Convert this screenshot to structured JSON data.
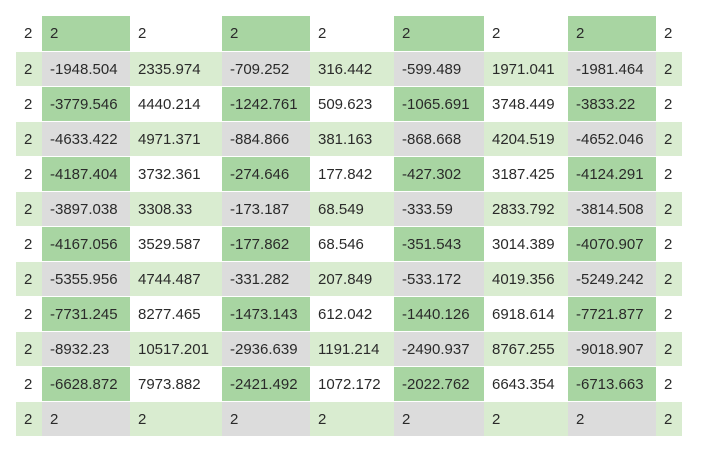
{
  "colors": {
    "white": "#ffffff",
    "light_green": "#d9ecd0",
    "mid_green": "#a8d5a2",
    "gray": "#dcdcdc"
  },
  "grid": {
    "rows": [
      {
        "cells": [
          "2",
          "2",
          "2",
          "2",
          "2",
          "2",
          "2",
          "2",
          "2"
        ],
        "bg": [
          "white",
          "mid_green",
          "white",
          "mid_green",
          "white",
          "mid_green",
          "white",
          "mid_green",
          "white"
        ]
      },
      {
        "cells": [
          "2",
          "-1948.504",
          "2335.974",
          "-709.252",
          "316.442",
          "-599.489",
          "1971.041",
          "-1981.464",
          "2"
        ],
        "bg": [
          "light_green",
          "gray",
          "light_green",
          "gray",
          "light_green",
          "gray",
          "light_green",
          "gray",
          "light_green"
        ]
      },
      {
        "cells": [
          "2",
          "-3779.546",
          "4440.214",
          "-1242.761",
          "509.623",
          "-1065.691",
          "3748.449",
          "-3833.22",
          "2"
        ],
        "bg": [
          "white",
          "mid_green",
          "white",
          "mid_green",
          "white",
          "mid_green",
          "white",
          "mid_green",
          "white"
        ]
      },
      {
        "cells": [
          "2",
          "-4633.422",
          "4971.371",
          "-884.866",
          "381.163",
          "-868.668",
          "4204.519",
          "-4652.046",
          "2"
        ],
        "bg": [
          "light_green",
          "gray",
          "light_green",
          "gray",
          "light_green",
          "gray",
          "light_green",
          "gray",
          "light_green"
        ]
      },
      {
        "cells": [
          "2",
          "-4187.404",
          "3732.361",
          "-274.646",
          "177.842",
          "-427.302",
          "3187.425",
          "-4124.291",
          "2"
        ],
        "bg": [
          "white",
          "mid_green",
          "white",
          "mid_green",
          "white",
          "mid_green",
          "white",
          "mid_green",
          "white"
        ]
      },
      {
        "cells": [
          "2",
          "-3897.038",
          "3308.33",
          "-173.187",
          "68.549",
          "-333.59",
          "2833.792",
          "-3814.508",
          "2"
        ],
        "bg": [
          "light_green",
          "gray",
          "light_green",
          "gray",
          "light_green",
          "gray",
          "light_green",
          "gray",
          "light_green"
        ]
      },
      {
        "cells": [
          "2",
          "-4167.056",
          "3529.587",
          "-177.862",
          "68.546",
          "-351.543",
          "3014.389",
          "-4070.907",
          "2"
        ],
        "bg": [
          "white",
          "mid_green",
          "white",
          "mid_green",
          "white",
          "mid_green",
          "white",
          "mid_green",
          "white"
        ]
      },
      {
        "cells": [
          "2",
          "-5355.956",
          "4744.487",
          "-331.282",
          "207.849",
          "-533.172",
          "4019.356",
          "-5249.242",
          "2"
        ],
        "bg": [
          "light_green",
          "gray",
          "light_green",
          "gray",
          "light_green",
          "gray",
          "light_green",
          "gray",
          "light_green"
        ]
      },
      {
        "cells": [
          "2",
          "-7731.245",
          "8277.465",
          "-1473.143",
          "612.042",
          "-1440.126",
          "6918.614",
          "-7721.877",
          "2"
        ],
        "bg": [
          "white",
          "mid_green",
          "white",
          "mid_green",
          "white",
          "mid_green",
          "white",
          "mid_green",
          "white"
        ]
      },
      {
        "cells": [
          "2",
          "-8932.23",
          "10517.201",
          "-2936.639",
          "1191.214",
          "-2490.937",
          "8767.255",
          "-9018.907",
          "2"
        ],
        "bg": [
          "light_green",
          "gray",
          "light_green",
          "gray",
          "light_green",
          "gray",
          "light_green",
          "gray",
          "light_green"
        ]
      },
      {
        "cells": [
          "2",
          "-6628.872",
          "7973.882",
          "-2421.492",
          "1072.172",
          "-2022.762",
          "6643.354",
          "-6713.663",
          "2"
        ],
        "bg": [
          "white",
          "mid_green",
          "white",
          "mid_green",
          "white",
          "mid_green",
          "white",
          "mid_green",
          "white"
        ]
      },
      {
        "cells": [
          "2",
          "2",
          "2",
          "2",
          "2",
          "2",
          "2",
          "2",
          "2"
        ],
        "bg": [
          "light_green",
          "gray",
          "light_green",
          "gray",
          "light_green",
          "gray",
          "light_green",
          "gray",
          "light_green"
        ]
      }
    ]
  }
}
